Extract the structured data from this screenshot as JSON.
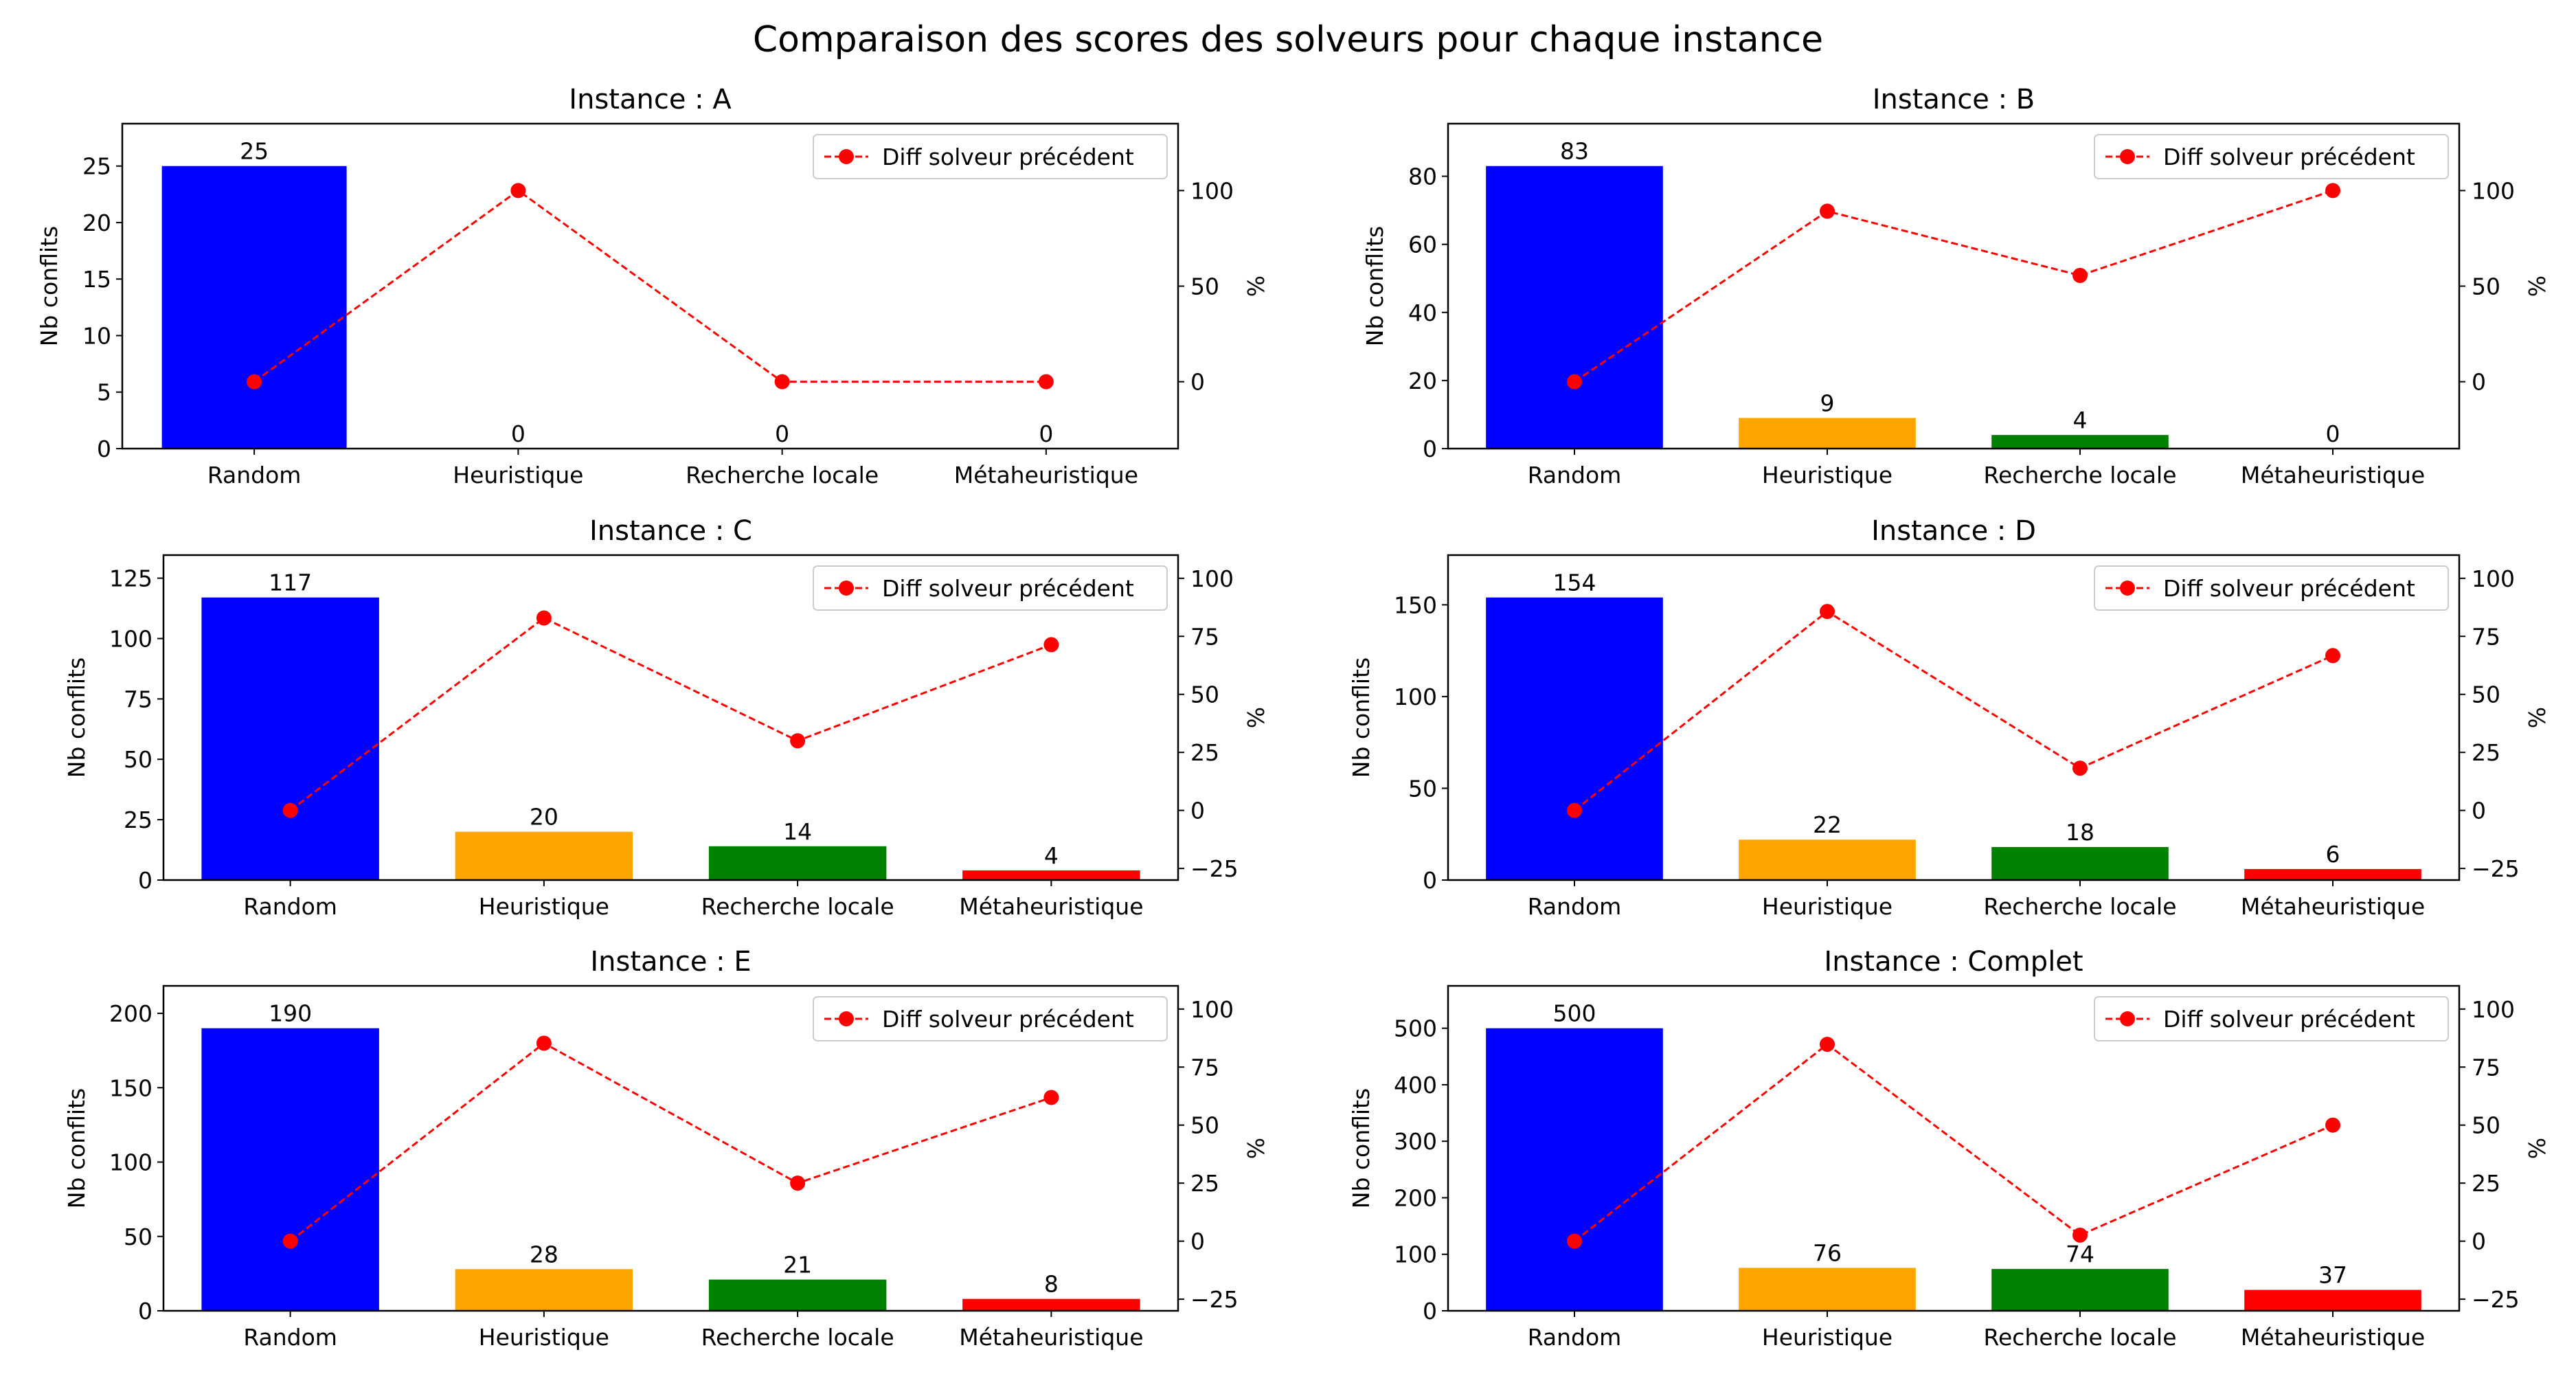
{
  "figure": {
    "title": "Comparaison des scores des solveurs pour chaque instance"
  },
  "colors": {
    "bars": [
      "#0000ff",
      "#ffa500",
      "#008000",
      "#ff0000"
    ],
    "line": "#ff0000"
  },
  "legend_label": "Diff solveur précédent",
  "chart_data": [
    {
      "type": "bar",
      "title": "Instance : A",
      "categories": [
        "Random",
        "Heuristique",
        "Recherche locale",
        "Métaheuristique"
      ],
      "values": [
        25,
        0,
        0,
        0
      ],
      "ylabel": "Nb conflits",
      "ylim": [
        0,
        28.75
      ],
      "yticks": [
        0,
        5,
        10,
        15,
        20,
        25
      ],
      "y2label": "%",
      "y2lim": [
        -35,
        135
      ],
      "y2ticks": [
        0,
        50,
        100
      ],
      "diff_pct": [
        0,
        100,
        0,
        0
      ],
      "legend": "top-right",
      "grid": false
    },
    {
      "type": "bar",
      "title": "Instance : B",
      "categories": [
        "Random",
        "Heuristique",
        "Recherche locale",
        "Métaheuristique"
      ],
      "values": [
        83,
        9,
        4,
        0
      ],
      "ylabel": "Nb conflits",
      "ylim": [
        0,
        95.45
      ],
      "yticks": [
        0,
        20,
        40,
        60,
        80
      ],
      "y2label": "%",
      "y2lim": [
        -35,
        135
      ],
      "y2ticks": [
        0,
        50,
        100
      ],
      "diff_pct": [
        0,
        89.2,
        55.6,
        100
      ],
      "legend": "top-right",
      "grid": false
    },
    {
      "type": "bar",
      "title": "Instance : C",
      "categories": [
        "Random",
        "Heuristique",
        "Recherche locale",
        "Métaheuristique"
      ],
      "values": [
        117,
        20,
        14,
        4
      ],
      "ylabel": "Nb conflits",
      "ylim": [
        0,
        134.55
      ],
      "yticks": [
        0,
        25,
        50,
        75,
        100,
        125
      ],
      "y2label": "%",
      "y2lim": [
        -30,
        110
      ],
      "y2ticks": [
        -25,
        0,
        25,
        50,
        75,
        100
      ],
      "diff_pct": [
        0,
        82.9,
        30,
        71.4
      ],
      "legend": "top-right",
      "grid": false
    },
    {
      "type": "bar",
      "title": "Instance : D",
      "categories": [
        "Random",
        "Heuristique",
        "Recherche locale",
        "Métaheuristique"
      ],
      "values": [
        154,
        22,
        18,
        6
      ],
      "ylabel": "Nb conflits",
      "ylim": [
        0,
        177.1
      ],
      "yticks": [
        0,
        50,
        100,
        150
      ],
      "y2label": "%",
      "y2lim": [
        -30,
        110
      ],
      "y2ticks": [
        -25,
        0,
        25,
        50,
        75,
        100
      ],
      "diff_pct": [
        0,
        85.7,
        18.2,
        66.7
      ],
      "legend": "top-right",
      "grid": false
    },
    {
      "type": "bar",
      "title": "Instance : E",
      "categories": [
        "Random",
        "Heuristique",
        "Recherche locale",
        "Métaheuristique"
      ],
      "values": [
        190,
        28,
        21,
        8
      ],
      "ylabel": "Nb conflits",
      "ylim": [
        0,
        218.5
      ],
      "yticks": [
        0,
        50,
        100,
        150,
        200
      ],
      "y2label": "%",
      "y2lim": [
        -30,
        110
      ],
      "y2ticks": [
        -25,
        0,
        25,
        50,
        75,
        100
      ],
      "diff_pct": [
        0,
        85.3,
        25,
        61.9
      ],
      "legend": "top-right",
      "grid": false
    },
    {
      "type": "bar",
      "title": "Instance : Complet",
      "categories": [
        "Random",
        "Heuristique",
        "Recherche locale",
        "Métaheuristique"
      ],
      "values": [
        500,
        76,
        74,
        37
      ],
      "ylabel": "Nb conflits",
      "ylim": [
        0,
        575
      ],
      "yticks": [
        0,
        100,
        200,
        300,
        400,
        500
      ],
      "y2label": "%",
      "y2lim": [
        -30,
        110
      ],
      "y2ticks": [
        -25,
        0,
        25,
        50,
        75,
        100
      ],
      "diff_pct": [
        0,
        84.8,
        2.6,
        50
      ],
      "legend": "top-right",
      "grid": false
    }
  ]
}
